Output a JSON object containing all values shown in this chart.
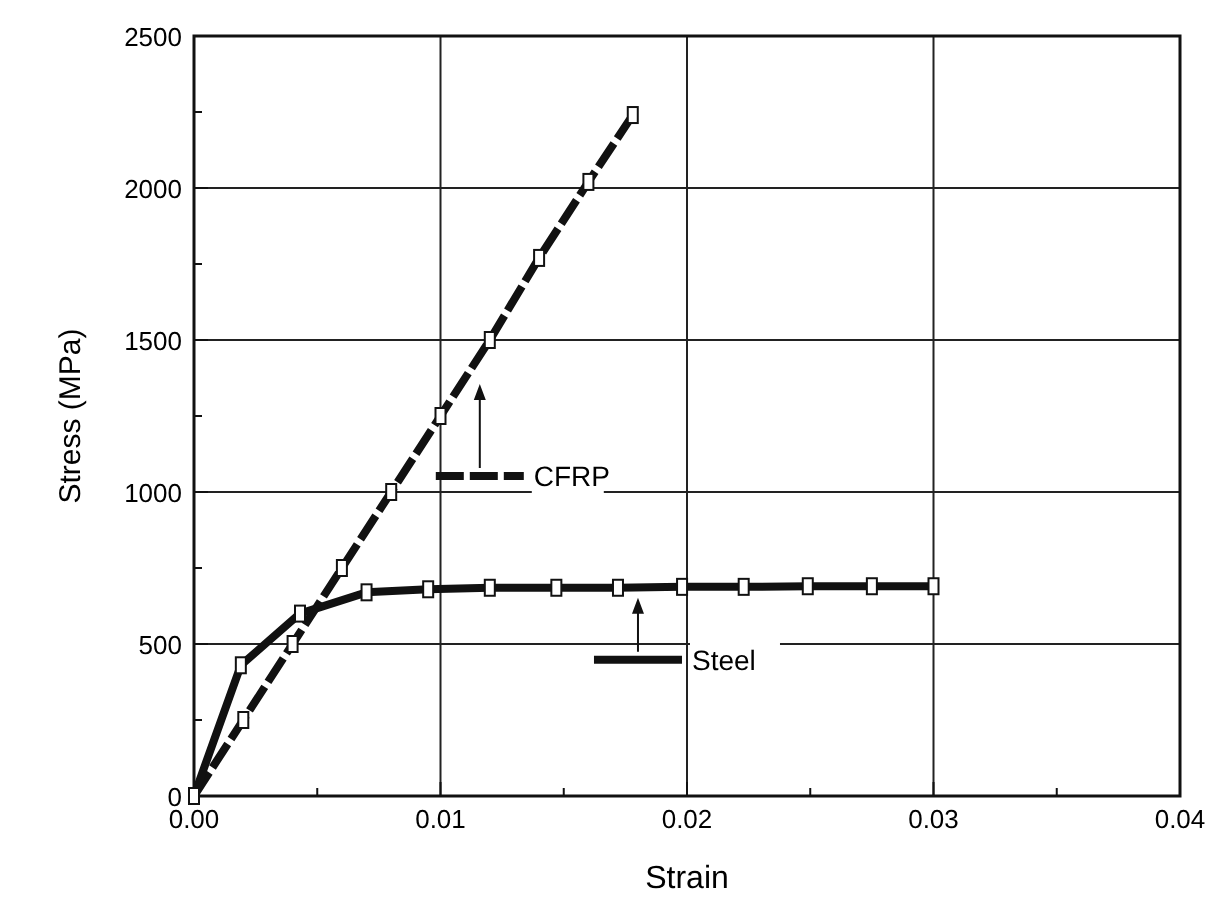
{
  "chart_data": {
    "type": "line",
    "xlabel": "Strain",
    "ylabel": "Stress (MPa)",
    "xlim": [
      0,
      0.04
    ],
    "xticks": [
      {
        "value": 0,
        "label": "0.00"
      },
      {
        "value": 0.005,
        "label": null
      },
      0.01,
      {
        "value": 0.015,
        "label": null
      },
      0.02,
      {
        "value": 0.025,
        "label": null
      },
      0.03,
      {
        "value": 0.035,
        "label": null
      },
      0.04
    ],
    "ylim": [
      0,
      2500
    ],
    "yticks": [
      0,
      {
        "value": 250,
        "label": null
      },
      500,
      {
        "value": 750,
        "label": null
      },
      1000,
      {
        "value": 1250,
        "label": null
      },
      1500,
      {
        "value": 1750,
        "label": null
      },
      2000,
      {
        "value": 2250,
        "label": null
      },
      2500
    ],
    "grid": true,
    "legend": "center",
    "marker": "square",
    "series": [
      {
        "name": "CFRP",
        "color": "#111111",
        "line_style": "dashed",
        "x": [
          0,
          0.002,
          0.004,
          0.006,
          0.008,
          0.01,
          0.012,
          0.014,
          0.016,
          0.0178
        ],
        "values": [
          0,
          250,
          500,
          750,
          1000,
          1250,
          1500,
          1770,
          2020,
          2240
        ]
      },
      {
        "name": "Steel",
        "color": "#111111",
        "line_style": "solid",
        "x": [
          0,
          0.0019,
          0.0043,
          0.007,
          0.0095,
          0.012,
          0.0147,
          0.0172,
          0.0198,
          0.0223,
          0.0249,
          0.0275,
          0.03
        ],
        "values": [
          0,
          430,
          600,
          670,
          680,
          685,
          685,
          685,
          688,
          688,
          690,
          690,
          690
        ]
      }
    ]
  }
}
